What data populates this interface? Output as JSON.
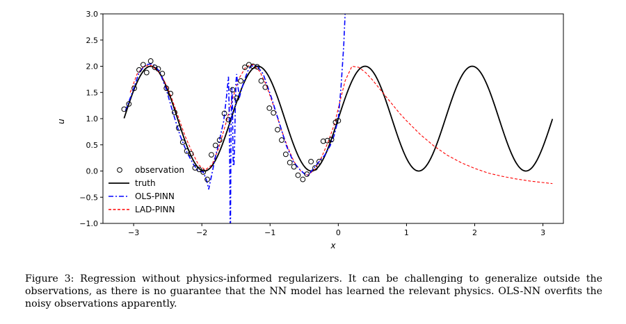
{
  "chart_data": {
    "type": "line",
    "xlabel": "x",
    "ylabel": "u",
    "xlim": [
      -3.45,
      3.3
    ],
    "ylim": [
      -1.0,
      3.0
    ],
    "xticks": [
      -3,
      -2,
      -1,
      0,
      1,
      2,
      3
    ],
    "yticks": [
      -1.0,
      -0.5,
      0.0,
      0.5,
      1.0,
      1.5,
      2.0,
      2.5,
      3.0
    ],
    "xtick_labels": [
      "−3",
      "−2",
      "−1",
      "0",
      "1",
      "2",
      "3"
    ],
    "ytick_labels": [
      "−1.0",
      "−0.5",
      "0.0",
      "0.5",
      "1.0",
      "1.5",
      "2.0",
      "2.5",
      "3.0"
    ],
    "grid": false,
    "legend_position": "lower-left",
    "series": [
      {
        "name": "observation",
        "style": "circle-markers",
        "color": "#000000",
        "x": [
          -3.14,
          -3.07,
          -2.99,
          -2.92,
          -2.86,
          -2.81,
          -2.75,
          -2.69,
          -2.64,
          -2.58,
          -2.52,
          -2.46,
          -2.4,
          -2.34,
          -2.28,
          -2.22,
          -2.16,
          -2.1,
          -2.04,
          -1.98,
          -1.92,
          -1.86,
          -1.8,
          -1.74,
          -1.67,
          -1.61,
          -1.55,
          -1.49,
          -1.43,
          -1.37,
          -1.31,
          -1.25,
          -1.19,
          -1.13,
          -1.07,
          -1.01,
          -0.95,
          -0.89,
          -0.83,
          -0.77,
          -0.71,
          -0.65,
          -0.59,
          -0.52,
          -0.46,
          -0.4,
          -0.34,
          -0.28,
          -0.22,
          -0.16,
          -0.1,
          -0.04,
          0.0
        ],
        "y": [
          1.18,
          1.28,
          1.58,
          1.93,
          2.03,
          1.88,
          2.1,
          1.98,
          1.95,
          1.86,
          1.58,
          1.48,
          1.12,
          0.82,
          0.55,
          0.38,
          0.33,
          0.06,
          0.03,
          -0.02,
          -0.16,
          0.31,
          0.49,
          0.59,
          1.1,
          0.98,
          1.55,
          1.39,
          1.72,
          1.98,
          2.03,
          2.0,
          1.99,
          1.72,
          1.6,
          1.2,
          1.11,
          0.79,
          0.59,
          0.32,
          0.16,
          0.08,
          -0.08,
          -0.16,
          -0.06,
          0.18,
          0.06,
          0.18,
          0.57,
          0.58,
          0.6,
          0.93,
          0.96
        ]
      },
      {
        "name": "truth",
        "style": "solid",
        "color": "#000000",
        "x_range": [
          -3.14,
          3.14
        ],
        "formula": "1 + sin(4x)"
      },
      {
        "name": "OLS-PINN",
        "style": "dash-dot",
        "color": "#0000ff",
        "x": [
          -3.12,
          -3.02,
          -2.92,
          -2.82,
          -2.72,
          -2.62,
          -2.52,
          -2.42,
          -2.32,
          -2.22,
          -2.12,
          -2.05,
          -1.98,
          -1.93,
          -1.9,
          -1.86,
          -1.8,
          -1.74,
          -1.68,
          -1.64,
          -1.61,
          -1.6,
          -1.59,
          -1.585,
          -1.58,
          -1.575,
          -1.57,
          -1.56,
          -1.55,
          -1.545,
          -1.54,
          -1.53,
          -1.52,
          -1.51,
          -1.5,
          -1.49,
          -1.47,
          -1.45,
          -1.42,
          -1.38,
          -1.33,
          -1.28,
          -1.2,
          -1.1,
          -0.98,
          -0.86,
          -0.76,
          -0.66,
          -0.58,
          -0.5,
          -0.44,
          -0.38,
          -0.3,
          -0.2,
          -0.12,
          -0.06,
          0.0,
          0.04,
          0.08,
          0.1
        ],
        "y": [
          1.15,
          1.5,
          1.88,
          2.03,
          2.05,
          1.9,
          1.55,
          1.1,
          0.68,
          0.36,
          0.12,
          0.0,
          -0.02,
          -0.18,
          -0.35,
          -0.1,
          0.28,
          0.6,
          0.95,
          1.4,
          1.8,
          1.2,
          0.0,
          -1.0,
          -1.0,
          0.2,
          1.0,
          1.6,
          1.2,
          0.5,
          0.1,
          0.1,
          0.5,
          1.2,
          1.7,
          1.85,
          1.6,
          1.4,
          1.55,
          1.72,
          1.9,
          2.0,
          2.02,
          1.85,
          1.4,
          0.9,
          0.48,
          0.18,
          0.05,
          -0.05,
          -0.08,
          0.02,
          0.15,
          0.3,
          0.48,
          0.68,
          1.0,
          1.6,
          2.4,
          3.0
        ]
      },
      {
        "name": "LAD-PINN",
        "style": "dashed",
        "color": "#ff0000",
        "x": [
          -3.05,
          -2.95,
          -2.85,
          -2.75,
          -2.65,
          -2.55,
          -2.45,
          -2.35,
          -2.25,
          -2.15,
          -2.05,
          -1.95,
          -1.85,
          -1.75,
          -1.65,
          -1.55,
          -1.45,
          -1.35,
          -1.25,
          -1.15,
          -1.05,
          -0.95,
          -0.85,
          -0.75,
          -0.65,
          -0.55,
          -0.45,
          -0.35,
          -0.25,
          -0.15,
          -0.05,
          0.0,
          0.1,
          0.2,
          0.3,
          0.4,
          0.5,
          0.6,
          0.7,
          0.8,
          0.9,
          1.0,
          1.2,
          1.4,
          1.6,
          1.8,
          2.0,
          2.2,
          2.4,
          2.6,
          2.8,
          3.0,
          3.14
        ],
        "y": [
          1.5,
          1.85,
          2.0,
          2.02,
          1.92,
          1.72,
          1.42,
          1.05,
          0.68,
          0.38,
          0.12,
          0.02,
          0.12,
          0.45,
          0.9,
          1.38,
          1.78,
          2.0,
          2.03,
          1.9,
          1.62,
          1.25,
          0.85,
          0.48,
          0.18,
          0.0,
          -0.08,
          0.02,
          0.25,
          0.55,
          0.92,
          1.2,
          1.72,
          2.0,
          1.98,
          1.88,
          1.74,
          1.58,
          1.42,
          1.26,
          1.1,
          0.96,
          0.7,
          0.48,
          0.3,
          0.16,
          0.05,
          -0.04,
          -0.1,
          -0.15,
          -0.19,
          -0.22,
          -0.24
        ]
      }
    ]
  },
  "caption": {
    "text": "Figure 3: Regression without physics-informed regularizers. It can be challenging to generalize outside the observations, as there is no guarantee that the NN model has learned the relevant physics. OLS-NN overfits the noisy observations apparently."
  }
}
